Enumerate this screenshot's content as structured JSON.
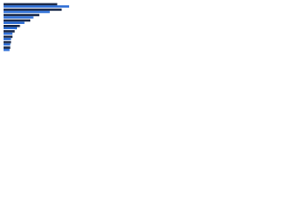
{
  "chart_data": {
    "type": "hbar",
    "categories": [
      null,
      null,
      null,
      null,
      null,
      null,
      null,
      null,
      null
    ],
    "series": [
      {
        "color": "#1b2a4a",
        "values": [
          72,
          78,
          48,
          36,
          22,
          15,
          12,
          10,
          9
        ]
      },
      {
        "color": "#2f6fd6",
        "values": [
          88,
          62,
          40,
          28,
          18,
          12,
          10,
          9,
          8
        ]
      }
    ],
    "xlim": [
      0,
      100
    ]
  }
}
